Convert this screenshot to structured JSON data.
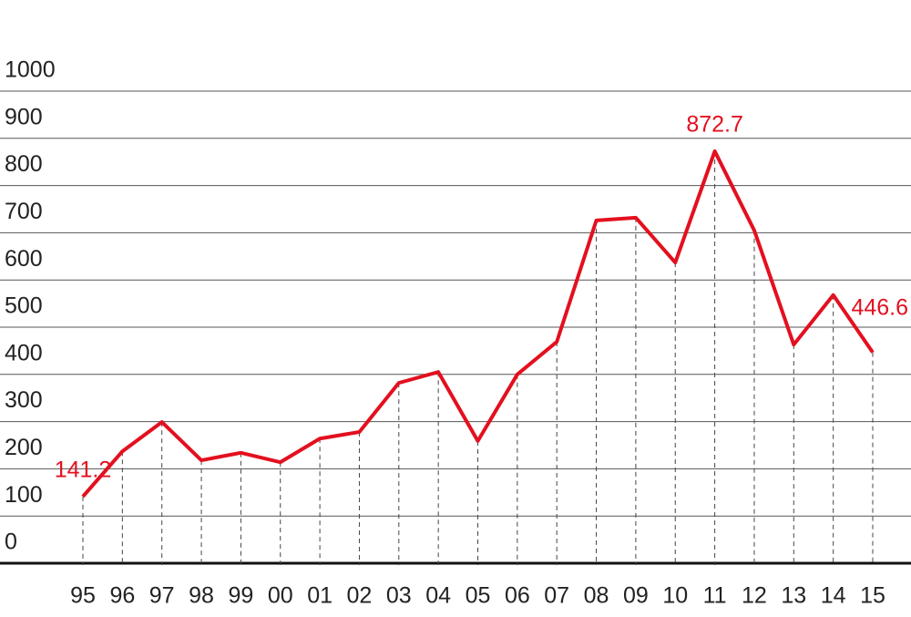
{
  "chart_data": {
    "type": "line",
    "categories": [
      "95",
      "96",
      "97",
      "98",
      "99",
      "00",
      "01",
      "02",
      "03",
      "04",
      "05",
      "06",
      "07",
      "08",
      "09",
      "10",
      "11",
      "12",
      "13",
      "14",
      "15"
    ],
    "series": [
      {
        "color": "#e3101f",
        "values": [
          141.2,
          237,
          299,
          218,
          234,
          214,
          264,
          278,
          382,
          405,
          259,
          400,
          469,
          726,
          732,
          637,
          872.7,
          705,
          463,
          568,
          446.6
        ],
        "value_labels": [
          "141.2",
          null,
          null,
          null,
          null,
          null,
          null,
          null,
          null,
          null,
          null,
          null,
          null,
          null,
          null,
          null,
          "872.7",
          null,
          null,
          null,
          "446.6"
        ]
      }
    ],
    "ylim": [
      0,
      1000
    ],
    "yticks": [
      0,
      100,
      200,
      300,
      400,
      500,
      600,
      700,
      800,
      900,
      1000
    ],
    "grid": true
  }
}
